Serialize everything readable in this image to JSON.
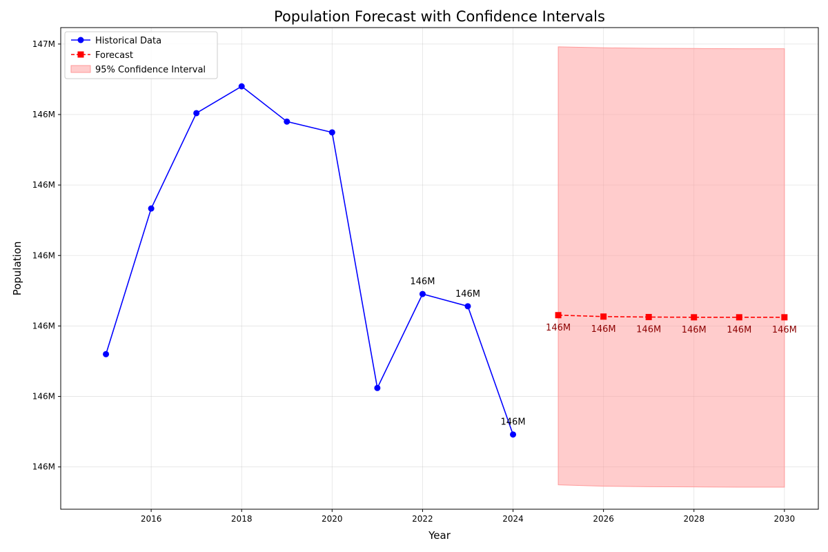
{
  "chart_data": {
    "type": "line",
    "title": "Population Forecast with Confidence Intervals",
    "xlabel": "Year",
    "ylabel": "Population",
    "xlim": [
      2014.0,
      2030.75
    ],
    "ylim": [
      145560000,
      146585000
    ],
    "x_ticks": [
      2016,
      2018,
      2020,
      2022,
      2024,
      2026,
      2028,
      2030
    ],
    "y_ticks": [
      {
        "value": 145650000,
        "label": "146M"
      },
      {
        "value": 145800000,
        "label": "146M"
      },
      {
        "value": 145950000,
        "label": "146M"
      },
      {
        "value": 146100000,
        "label": "146M"
      },
      {
        "value": 146250000,
        "label": "146M"
      },
      {
        "value": 146400000,
        "label": "146M"
      },
      {
        "value": 146550000,
        "label": "147M"
      }
    ],
    "grid": true,
    "legend_position": "top-left",
    "series": [
      {
        "name": "Historical Data",
        "color": "#0000ff",
        "line_style": "solid",
        "marker": "circle",
        "x": [
          2015,
          2016,
          2017,
          2018,
          2019,
          2020,
          2021,
          2022,
          2023,
          2024
        ],
        "values": [
          145890000,
          146200000,
          146403000,
          146460000,
          146385000,
          146362000,
          145818000,
          146018000,
          145992000,
          145719000
        ],
        "point_labels": [
          null,
          null,
          null,
          null,
          null,
          null,
          null,
          "146M",
          "146M",
          "146M"
        ]
      },
      {
        "name": "Forecast",
        "color": "#ff0000",
        "line_style": "dashed",
        "marker": "square",
        "x": [
          2025,
          2026,
          2027,
          2028,
          2029,
          2030
        ],
        "values": [
          145973000,
          145970000,
          145969000,
          145968500,
          145968500,
          145968500
        ],
        "point_labels": [
          "146M",
          "146M",
          "146M",
          "146M",
          "146M",
          "146M"
        ],
        "label_color": "#8b0000"
      }
    ],
    "confidence_band": {
      "name": "95% Confidence Interval",
      "color": "#ff9999",
      "x": [
        2025,
        2026,
        2027,
        2028,
        2029,
        2030
      ],
      "upper": [
        146544000,
        146542000,
        146541000,
        146540500,
        146540000,
        146540000
      ],
      "lower": [
        145612000,
        145609000,
        145608000,
        145607500,
        145607000,
        145607000
      ]
    }
  }
}
